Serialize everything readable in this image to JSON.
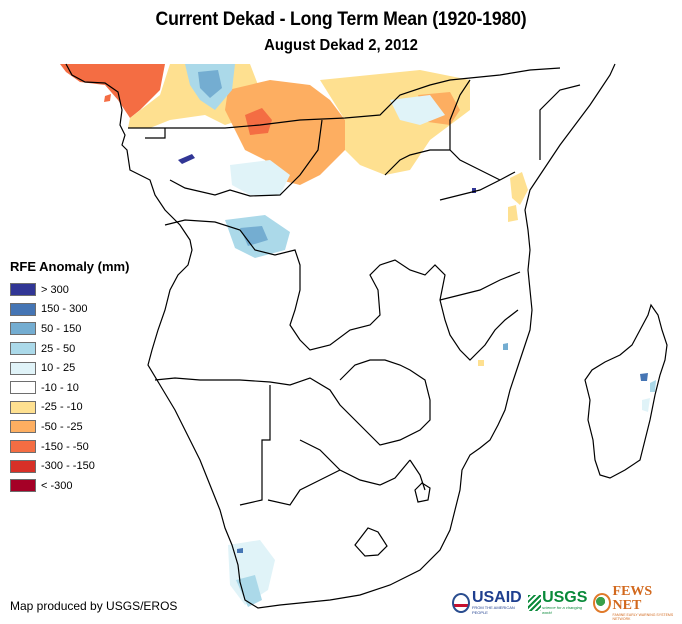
{
  "header": {
    "title": "Current Dekad - Long Term Mean (1920-1980)",
    "subtitle": "August Dekad 2, 2012"
  },
  "legend": {
    "title": "RFE Anomaly (mm)",
    "items": [
      {
        "label": "> 300",
        "color": "#313695"
      },
      {
        "label": "150 - 300",
        "color": "#4575b4"
      },
      {
        "label": "50 - 150",
        "color": "#74add1"
      },
      {
        "label": "25 - 50",
        "color": "#abd9e9"
      },
      {
        "label": "10 - 25",
        "color": "#e0f3f8"
      },
      {
        "label": "-10 - 10",
        "color": "#ffffff"
      },
      {
        "label": "-25 - -10",
        "color": "#fee090"
      },
      {
        "label": "-50 - -25",
        "color": "#fdae61"
      },
      {
        "label": "-150 - -50",
        "color": "#f46d43"
      },
      {
        "label": "-300 - -150",
        "color": "#d73027"
      },
      {
        "label": "< -300",
        "color": "#a50026"
      }
    ]
  },
  "footer": {
    "credit": "Map produced by USGS/EROS",
    "logos": {
      "usaid": "USAID",
      "usaid_tagline": "FROM THE AMERICAN PEOPLE",
      "usgs": "USGS",
      "usgs_tagline": "science for a changing world",
      "fews": "FEWS NET",
      "fews_tagline": "FAMINE EARLY WARNING SYSTEMS NETWORK"
    }
  },
  "map": {
    "region": "Southern Africa",
    "variable": "RFE Anomaly (mm)"
  }
}
